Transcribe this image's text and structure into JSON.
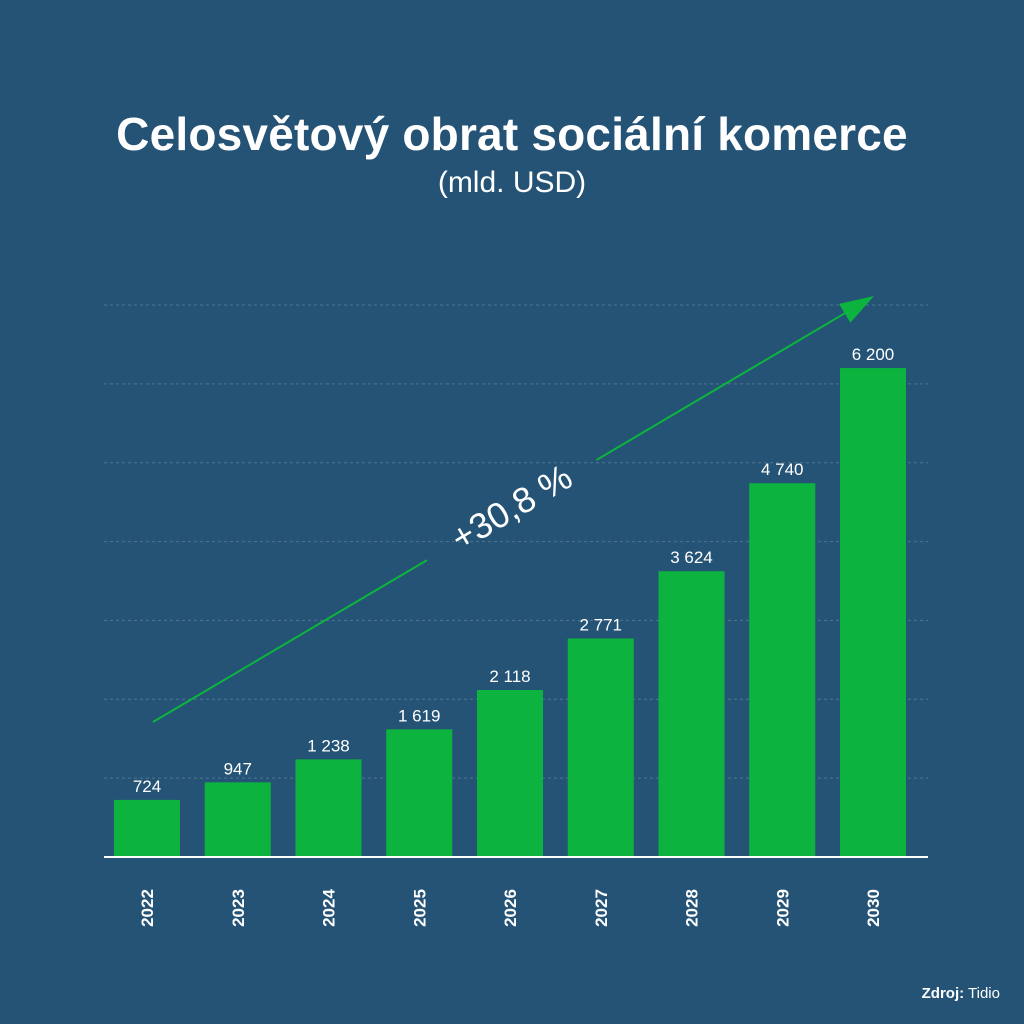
{
  "title": "Celosvětový obrat sociální komerce",
  "subtitle": "(mld. USD)",
  "trend_label": "+30,8 %",
  "source": {
    "label": "Zdroj:",
    "value": "Tidio"
  },
  "colors": {
    "background": "#255375",
    "bar": "#0cb43f",
    "arrow": "#0cb43f",
    "text": "#ffffff",
    "grid": "#6e8ca3"
  },
  "chart_data": {
    "type": "bar",
    "title": "Celosvětový obrat sociální komerce",
    "subtitle": "(mld. USD)",
    "categories": [
      "2022",
      "2023",
      "2024",
      "2025",
      "2026",
      "2027",
      "2028",
      "2029",
      "2030"
    ],
    "values": [
      724,
      947,
      1238,
      1619,
      2118,
      2771,
      3624,
      4740,
      6200
    ],
    "value_labels": [
      "724",
      "947",
      "1 238",
      "1 619",
      "2 118",
      "2 771",
      "3 624",
      "4 740",
      "6 200"
    ],
    "annotation": "+30,8 %",
    "ylim": [
      0,
      7000
    ],
    "grid": true,
    "xlabel": "",
    "ylabel": ""
  }
}
